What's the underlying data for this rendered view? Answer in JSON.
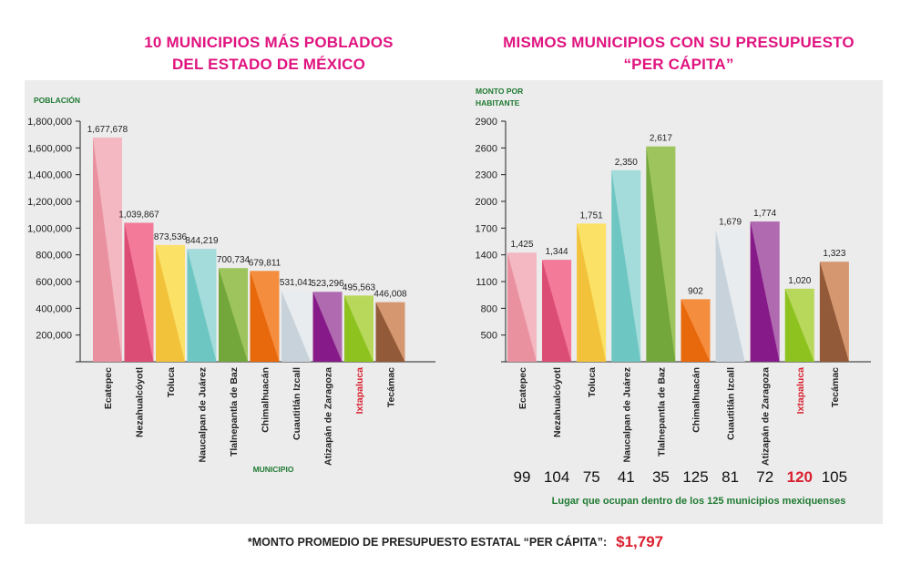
{
  "titles": {
    "left_line1": "10 MUNICIPIOS MÁS POBLADOS",
    "left_line2": "DEL ESTADO DE MÉXICO",
    "right_line1": "MISMOS MUNICIPIOS CON SU PRESUPUESTO",
    "right_line2": "“PER CÁPITA”"
  },
  "colors": {
    "title": "#e0137f",
    "axis_label": "#1f7a32",
    "highlight": "#d9202f",
    "bars": [
      [
        "#f3b8c2",
        "#e9919f"
      ],
      [
        "#f37a98",
        "#dc4d75"
      ],
      [
        "#fbe165",
        "#f2c23b"
      ],
      [
        "#a3dcda",
        "#6ec6c2"
      ],
      [
        "#9ec45e",
        "#73a73c"
      ],
      [
        "#f58d3e",
        "#e8680c"
      ],
      [
        "#e8ecef",
        "#c8d2da"
      ],
      [
        "#b06ab0",
        "#861a88"
      ],
      [
        "#b8d85c",
        "#8dc21f"
      ],
      [
        "#d49770",
        "#925a38"
      ]
    ]
  },
  "chart_data": [
    {
      "type": "bar",
      "title": "10 MUNICIPIOS MÁS POBLADOS DEL ESTADO DE MÉXICO",
      "ylabel": "POBLACIÓN",
      "xlabel": "MUNICIPIO",
      "categories": [
        "Ecatepec",
        "Nezahualcóyotl",
        "Toluca",
        "Naucalpan de Juárez",
        "Tlalnepantla de Baz",
        "Chimalhuacán",
        "Cuautitlán Izcall",
        "Atizapán de Zaragoza",
        "Ixtapaluca",
        "Tecámac"
      ],
      "values": [
        1677678,
        1039867,
        873536,
        844219,
        700734,
        679811,
        531041,
        523296,
        495563,
        446008
      ],
      "value_labels": [
        "1,677,678",
        "1,039,867",
        "873,536",
        "844,219",
        "700,734",
        "679,811",
        "531,041",
        "523,296",
        "495,563",
        "446,008"
      ],
      "yticks": [
        200000,
        400000,
        600000,
        800000,
        1000000,
        1200000,
        1400000,
        1600000,
        1800000
      ],
      "ytick_labels": [
        "200,000",
        "400,000",
        "600,000",
        "800,000",
        "1,000,000",
        "1,200,000",
        "1,400,000",
        "1,600,000",
        "1,800,000"
      ],
      "ylim": [
        0,
        1800000
      ],
      "highlight_category": "Ixtapaluca",
      "grid": false
    },
    {
      "type": "bar",
      "title": "MISMOS MUNICIPIOS CON SU PRESUPUESTO “PER CÁPITA”",
      "ylabel_line1": "MONTO POR",
      "ylabel_line2": "HABITANTE",
      "categories": [
        "Ecatepec",
        "Nezahualcóyotl",
        "Toluca",
        "Naucalpan de Juárez",
        "Tlalnepantla de Baz",
        "Chimalhuacán",
        "Cuautitlán Izcall",
        "Atizapán de Zaragoza",
        "Ixtapaluca",
        "Tecámac"
      ],
      "values": [
        1425,
        1344,
        1751,
        2350,
        2617,
        902,
        1679,
        1774,
        1020,
        1323
      ],
      "value_labels": [
        "1,425",
        "1,344",
        "1,751",
        "2,350",
        "2,617",
        "902",
        "1,679",
        "1,774",
        "1,020",
        "1,323"
      ],
      "yticks": [
        500,
        800,
        1100,
        1400,
        1700,
        2000,
        2300,
        2600,
        2900
      ],
      "ytick_labels": [
        "500",
        "800",
        "1100",
        "1400",
        "1700",
        "2000",
        "2300",
        "2600",
        "2900"
      ],
      "ylim": [
        200,
        2900
      ],
      "ranks": [
        99,
        104,
        75,
        41,
        35,
        125,
        81,
        72,
        120,
        105
      ],
      "ranks_caption": "Lugar que ocupan dentro de los 125 municipios mexiquenses",
      "highlight_category": "Ixtapaluca",
      "grid": false
    }
  ],
  "footer": {
    "label": "*MONTO PROMEDIO DE PRESUPUESTO ESTATAL “PER CÁPITA”:",
    "amount": "$1,797"
  }
}
